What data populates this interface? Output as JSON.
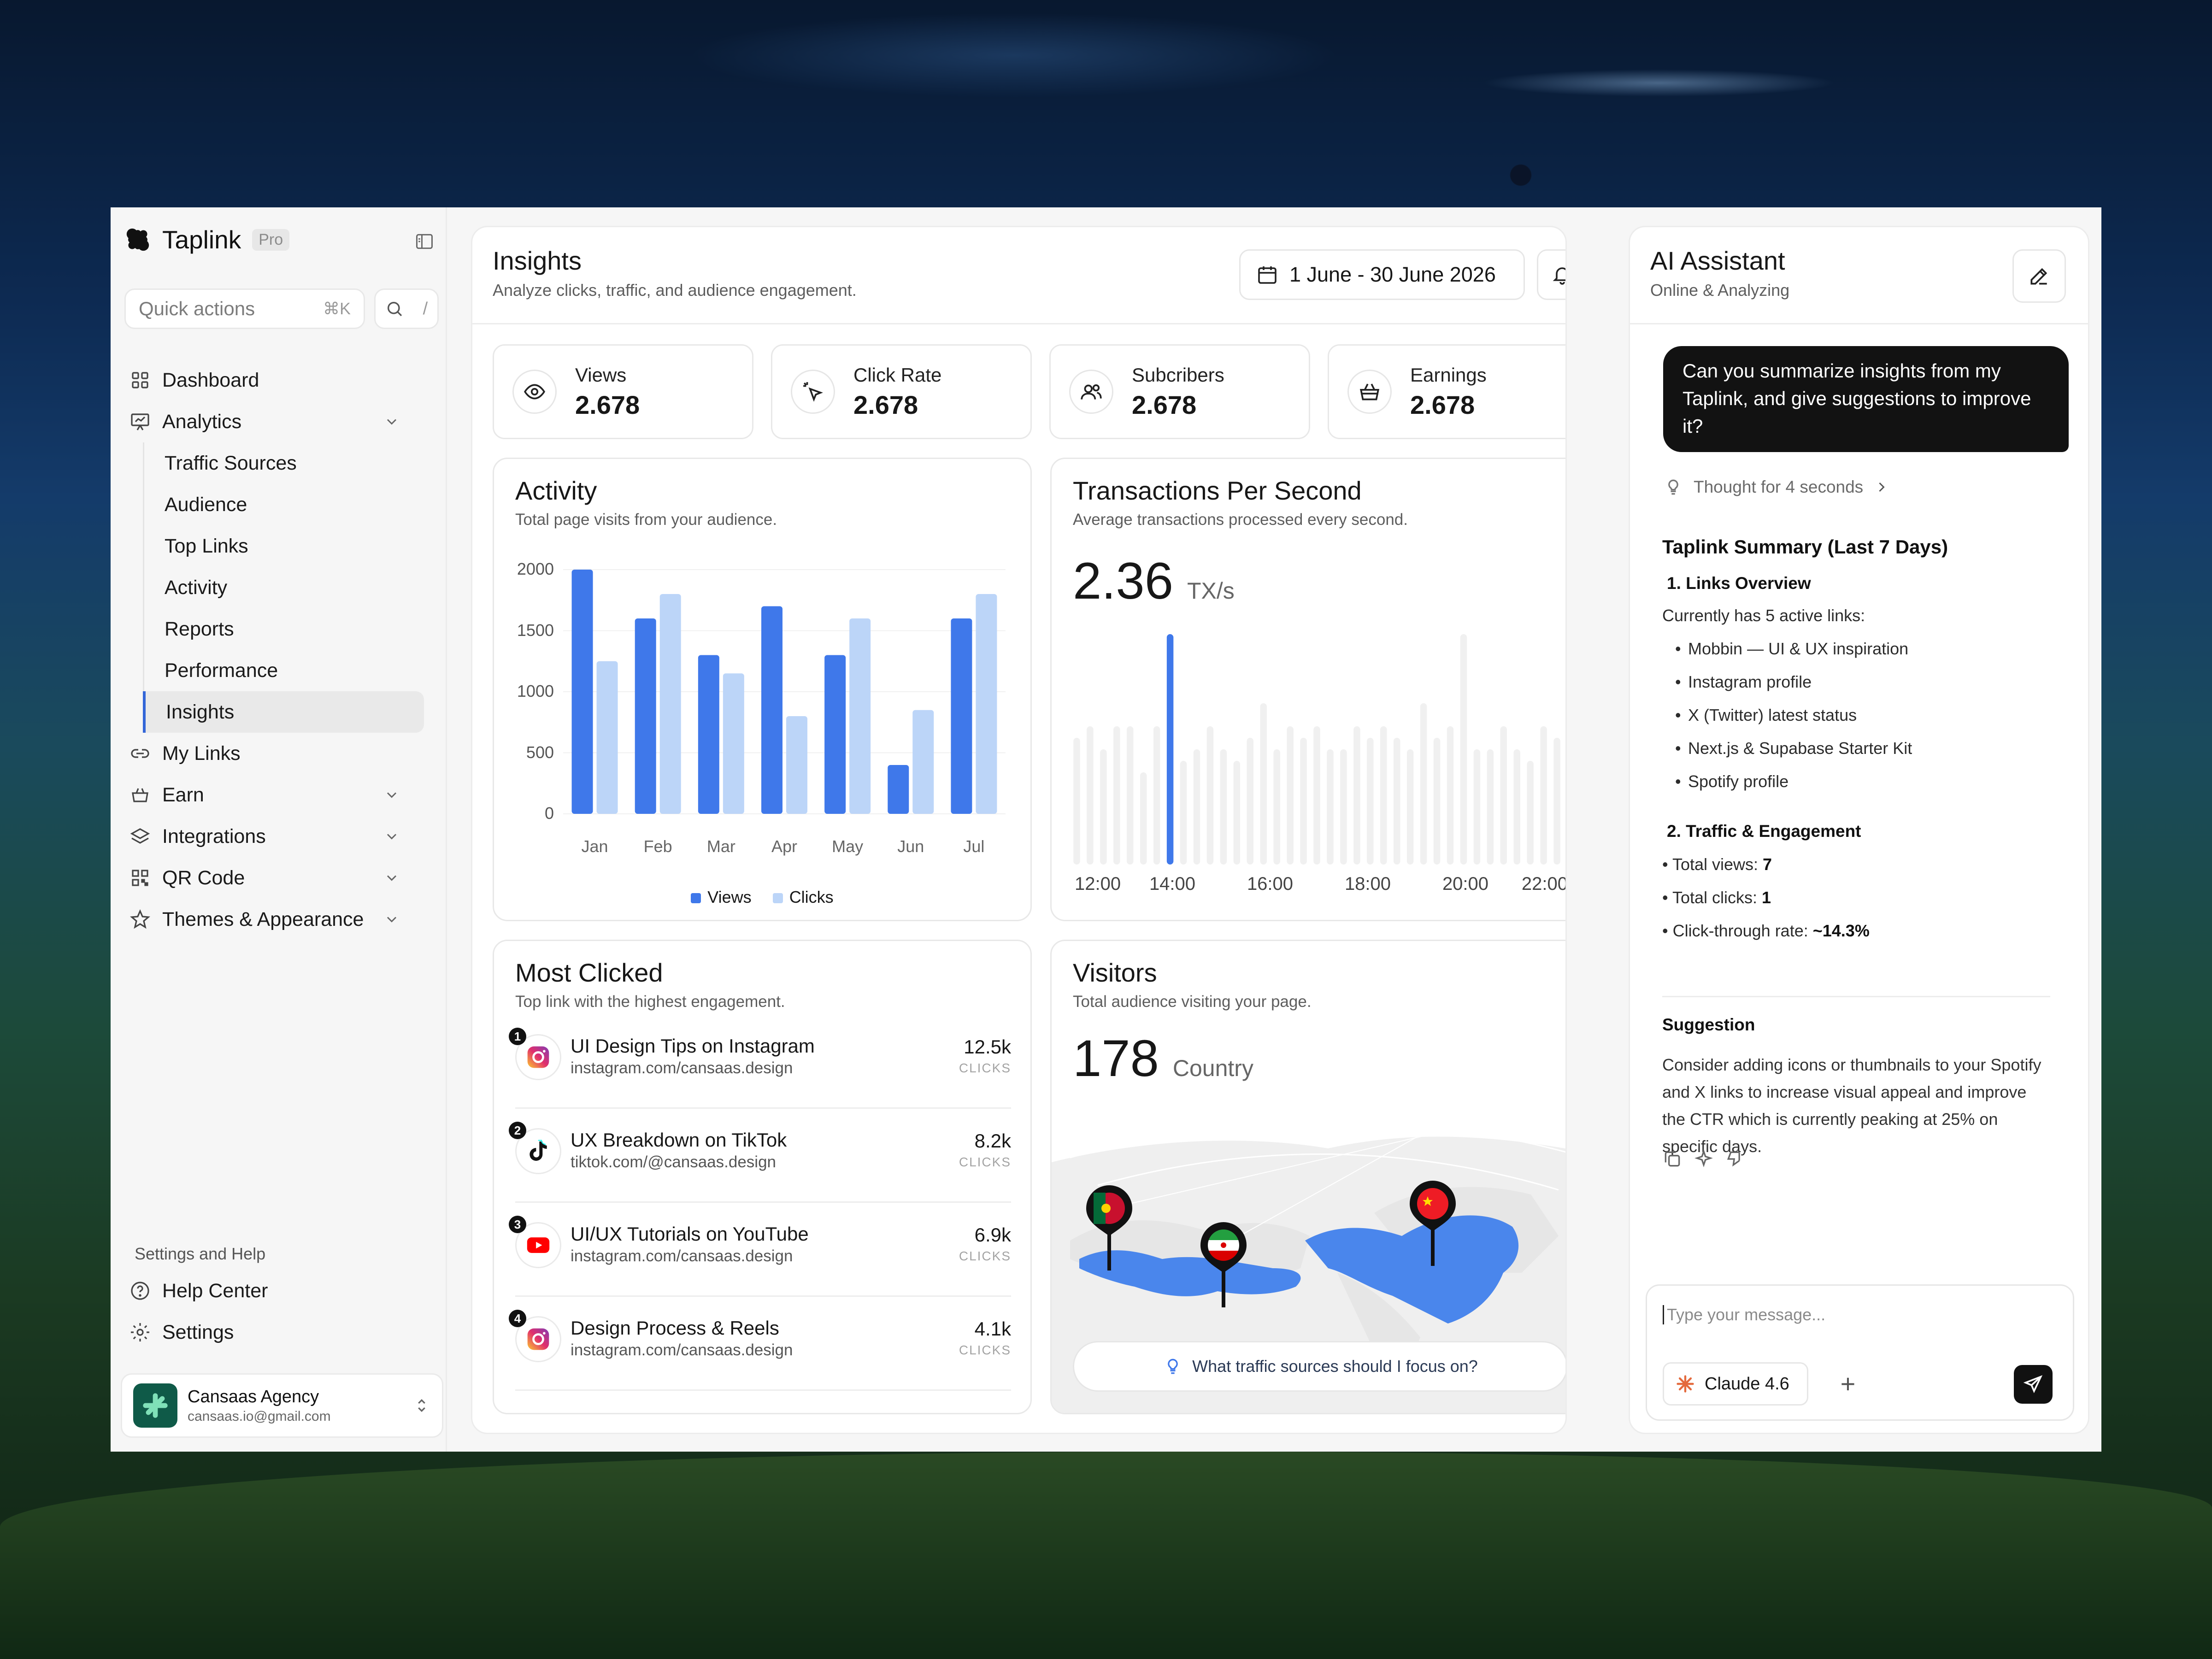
{
  "brand": {
    "name": "Taplink",
    "plan_badge": "Pro"
  },
  "quick_actions": {
    "label": "Quick actions",
    "shortcut": "⌘K",
    "search_shortcut": "/"
  },
  "nav": {
    "dashboard": "Dashboard",
    "analytics": "Analytics",
    "analytics_children": [
      "Traffic Sources",
      "Audience",
      "Top Links",
      "Activity",
      "Reports",
      "Performance",
      "Insights"
    ],
    "active_child": "Insights",
    "my_links": "My Links",
    "earn": "Earn",
    "integrations": "Integrations",
    "qr_code": "QR Code",
    "themes": "Themes & Appearance"
  },
  "settings_section": {
    "title": "Settings and Help",
    "help": "Help Center",
    "settings": "Settings"
  },
  "account": {
    "name": "Cansaas Agency",
    "email": "cansaas.io@gmail.com"
  },
  "header": {
    "title": "Insights",
    "subtitle": "Analyze clicks, traffic, and audience engagement.",
    "date_range": "1 June - 30 June 2026"
  },
  "stats": [
    {
      "label": "Views",
      "value": "2.678",
      "icon": "eye-icon"
    },
    {
      "label": "Click Rate",
      "value": "2.678",
      "icon": "cursor-click-icon"
    },
    {
      "label": "Subcribers",
      "value": "2.678",
      "icon": "users-icon"
    },
    {
      "label": "Earnings",
      "value": "2.678",
      "icon": "basket-icon"
    }
  ],
  "activity": {
    "title": "Activity",
    "subtitle": "Total page visits from your audience.",
    "chart_data": {
      "type": "bar",
      "categories": [
        "Jan",
        "Feb",
        "Mar",
        "Apr",
        "May",
        "Jun",
        "Jul"
      ],
      "series": [
        {
          "name": "Views",
          "values": [
            2000,
            1600,
            1300,
            1700,
            1300,
            400,
            1600
          ],
          "color": "#3f78ea"
        },
        {
          "name": "Clicks",
          "values": [
            1250,
            1800,
            1150,
            800,
            1600,
            850,
            1800
          ],
          "color": "#bcd5f8"
        }
      ],
      "yticks": [
        0,
        500,
        1000,
        1500,
        2000
      ],
      "ylim": [
        0,
        2000
      ],
      "legend": "bottom-center"
    }
  },
  "tps": {
    "title": "Transactions Per Second",
    "subtitle": "Average transactions processed every second.",
    "value": "2.36",
    "unit": "TX/s",
    "chart_data": {
      "type": "bar",
      "x_ticks": [
        "12:00",
        "14:00",
        "16:00",
        "18:00",
        "20:00",
        "22:00"
      ],
      "values": [
        0.55,
        0.6,
        0.5,
        0.6,
        0.6,
        0.4,
        0.6,
        1.0,
        0.45,
        0.5,
        0.6,
        0.5,
        0.45,
        0.55,
        0.7,
        0.5,
        0.6,
        0.55,
        0.6,
        0.5,
        0.5,
        0.6,
        0.55,
        0.6,
        0.55,
        0.5,
        0.7,
        0.55,
        0.6,
        1.0,
        0.5,
        0.5,
        0.6,
        0.5,
        0.45,
        0.6,
        0.55,
        0.6
      ],
      "highlight_index": 7,
      "highlight_color": "#3f78ea",
      "base_color": "#f0f0f0"
    }
  },
  "most_clicked": {
    "title": "Most Clicked",
    "subtitle": "Top link with the highest engagement.",
    "click_label": "CLICKS",
    "items": [
      {
        "rank": "1",
        "title": "UI Design Tips on Instagram",
        "url": "instagram.com/cansaas.design",
        "clicks": "12.5k",
        "icon": "instagram-icon"
      },
      {
        "rank": "2",
        "title": "UX Breakdown on TikTok",
        "url": "tiktok.com/@cansaas.design",
        "clicks": "8.2k",
        "icon": "tiktok-icon"
      },
      {
        "rank": "3",
        "title": "UI/UX Tutorials on YouTube",
        "url": "instagram.com/cansaas.design",
        "clicks": "6.9k",
        "icon": "youtube-icon"
      },
      {
        "rank": "4",
        "title": "Design Process & Reels",
        "url": "instagram.com/cansaas.design",
        "clicks": "4.1k",
        "icon": "instagram-icon"
      }
    ]
  },
  "visitors": {
    "title": "Visitors",
    "subtitle": "Total audience visiting your page.",
    "value": "178",
    "unit": "Country",
    "pins": [
      "portugal-flag",
      "iran-flag",
      "china-flag"
    ],
    "prompt": "What traffic sources should I focus on?"
  },
  "ai": {
    "title": "AI Assistant",
    "status": "Online & Analyzing",
    "user_message": "Can you summarize insights from my Taplink, and give suggestions to improve it?",
    "thought": "Thought for 4 seconds",
    "summary_title": "Taplink Summary (Last 7 Days)",
    "section1_title": "1. Links Overview",
    "section1_intro": "Currently has 5 active links:",
    "links": [
      "Mobbin — UI & UX inspiration",
      "Instagram profile",
      "X (Twitter) latest status",
      "Next.js & Supabase Starter Kit",
      "Spotify profile"
    ],
    "section2_title": "2. Traffic & Engagement",
    "metrics": [
      {
        "label": "• Total views: ",
        "value": "7"
      },
      {
        "label": "• Total clicks: ",
        "value": "1"
      },
      {
        "label": "• Click-through rate: ",
        "value": "~14.3%"
      }
    ],
    "suggestion_title": "Suggestion",
    "suggestion_text": "Consider adding icons or thumbnails to your Spotify and X links to increase visual appeal and improve the CTR which is currently peaking at 25% on specific days.",
    "input_placeholder": "Type your message...",
    "model": "Claude 4.6"
  }
}
